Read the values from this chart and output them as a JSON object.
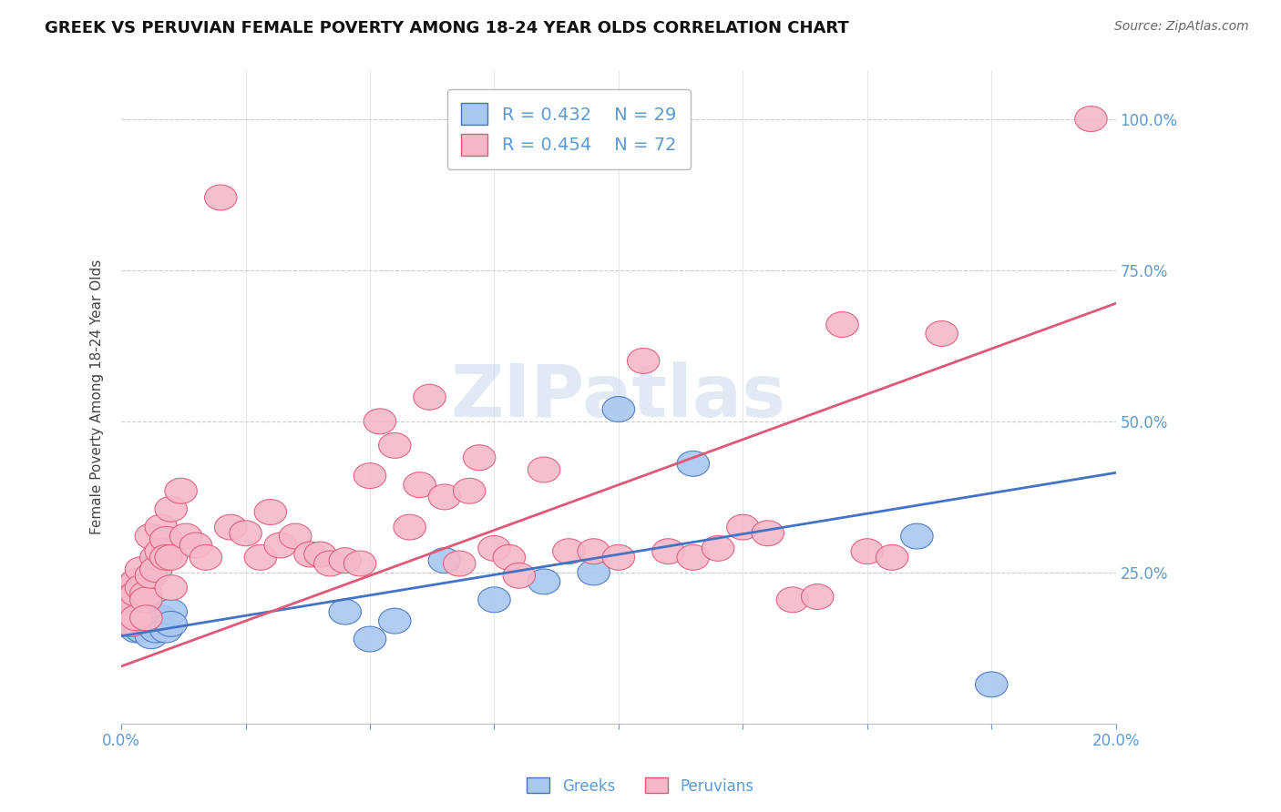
{
  "title": "GREEK VS PERUVIAN FEMALE POVERTY AMONG 18-24 YEAR OLDS CORRELATION CHART",
  "source": "Source: ZipAtlas.com",
  "ylabel": "Female Poverty Among 18-24 Year Olds",
  "greek_R": 0.432,
  "greek_N": 29,
  "peruvian_R": 0.454,
  "peruvian_N": 72,
  "greek_color": "#A8C8F0",
  "peruvian_color": "#F5B8C8",
  "greek_line_color": "#4472C4",
  "peruvian_line_color": "#E05878",
  "watermark_text": "ZIPatlas",
  "background_color": "#FFFFFF",
  "axis_label_color": "#5B9BD5",
  "right_axis_labels": [
    "25.0%",
    "50.0%",
    "75.0%",
    "100.0%"
  ],
  "xlim": [
    0.0,
    0.2
  ],
  "ylim": [
    0.0,
    1.08
  ],
  "greek_line_y0": 0.145,
  "greek_line_y1": 0.415,
  "peruvian_line_y0": 0.095,
  "peruvian_line_y1": 0.695,
  "greek_x": [
    0.001,
    0.002,
    0.002,
    0.003,
    0.003,
    0.003,
    0.004,
    0.004,
    0.005,
    0.005,
    0.006,
    0.006,
    0.007,
    0.007,
    0.008,
    0.009,
    0.01,
    0.01,
    0.045,
    0.05,
    0.055,
    0.065,
    0.075,
    0.085,
    0.095,
    0.1,
    0.115,
    0.16,
    0.175
  ],
  "greek_y": [
    0.225,
    0.21,
    0.18,
    0.175,
    0.165,
    0.155,
    0.155,
    0.215,
    0.165,
    0.195,
    0.145,
    0.165,
    0.175,
    0.155,
    0.175,
    0.155,
    0.185,
    0.165,
    0.185,
    0.14,
    0.17,
    0.27,
    0.205,
    0.235,
    0.25,
    0.52,
    0.43,
    0.31,
    0.065
  ],
  "peruvian_x": [
    0.001,
    0.001,
    0.001,
    0.002,
    0.002,
    0.002,
    0.002,
    0.003,
    0.003,
    0.003,
    0.004,
    0.004,
    0.005,
    0.005,
    0.005,
    0.006,
    0.006,
    0.007,
    0.007,
    0.008,
    0.008,
    0.009,
    0.009,
    0.01,
    0.01,
    0.01,
    0.012,
    0.013,
    0.015,
    0.017,
    0.02,
    0.022,
    0.025,
    0.028,
    0.03,
    0.032,
    0.035,
    0.038,
    0.04,
    0.042,
    0.045,
    0.048,
    0.05,
    0.052,
    0.055,
    0.058,
    0.06,
    0.062,
    0.065,
    0.068,
    0.07,
    0.072,
    0.075,
    0.078,
    0.08,
    0.085,
    0.09,
    0.095,
    0.1,
    0.105,
    0.11,
    0.115,
    0.12,
    0.125,
    0.13,
    0.135,
    0.14,
    0.145,
    0.15,
    0.155,
    0.165,
    0.195
  ],
  "peruvian_y": [
    0.225,
    0.215,
    0.185,
    0.225,
    0.21,
    0.19,
    0.165,
    0.235,
    0.215,
    0.175,
    0.255,
    0.225,
    0.215,
    0.205,
    0.175,
    0.31,
    0.245,
    0.275,
    0.255,
    0.325,
    0.285,
    0.305,
    0.275,
    0.355,
    0.275,
    0.225,
    0.385,
    0.31,
    0.295,
    0.275,
    0.87,
    0.325,
    0.315,
    0.275,
    0.35,
    0.295,
    0.31,
    0.28,
    0.28,
    0.265,
    0.27,
    0.265,
    0.41,
    0.5,
    0.46,
    0.325,
    0.395,
    0.54,
    0.375,
    0.265,
    0.385,
    0.44,
    0.29,
    0.275,
    0.245,
    0.42,
    0.285,
    0.285,
    0.275,
    0.6,
    0.285,
    0.275,
    0.29,
    0.325,
    0.315,
    0.205,
    0.21,
    0.66,
    0.285,
    0.275,
    0.645,
    1.0
  ]
}
